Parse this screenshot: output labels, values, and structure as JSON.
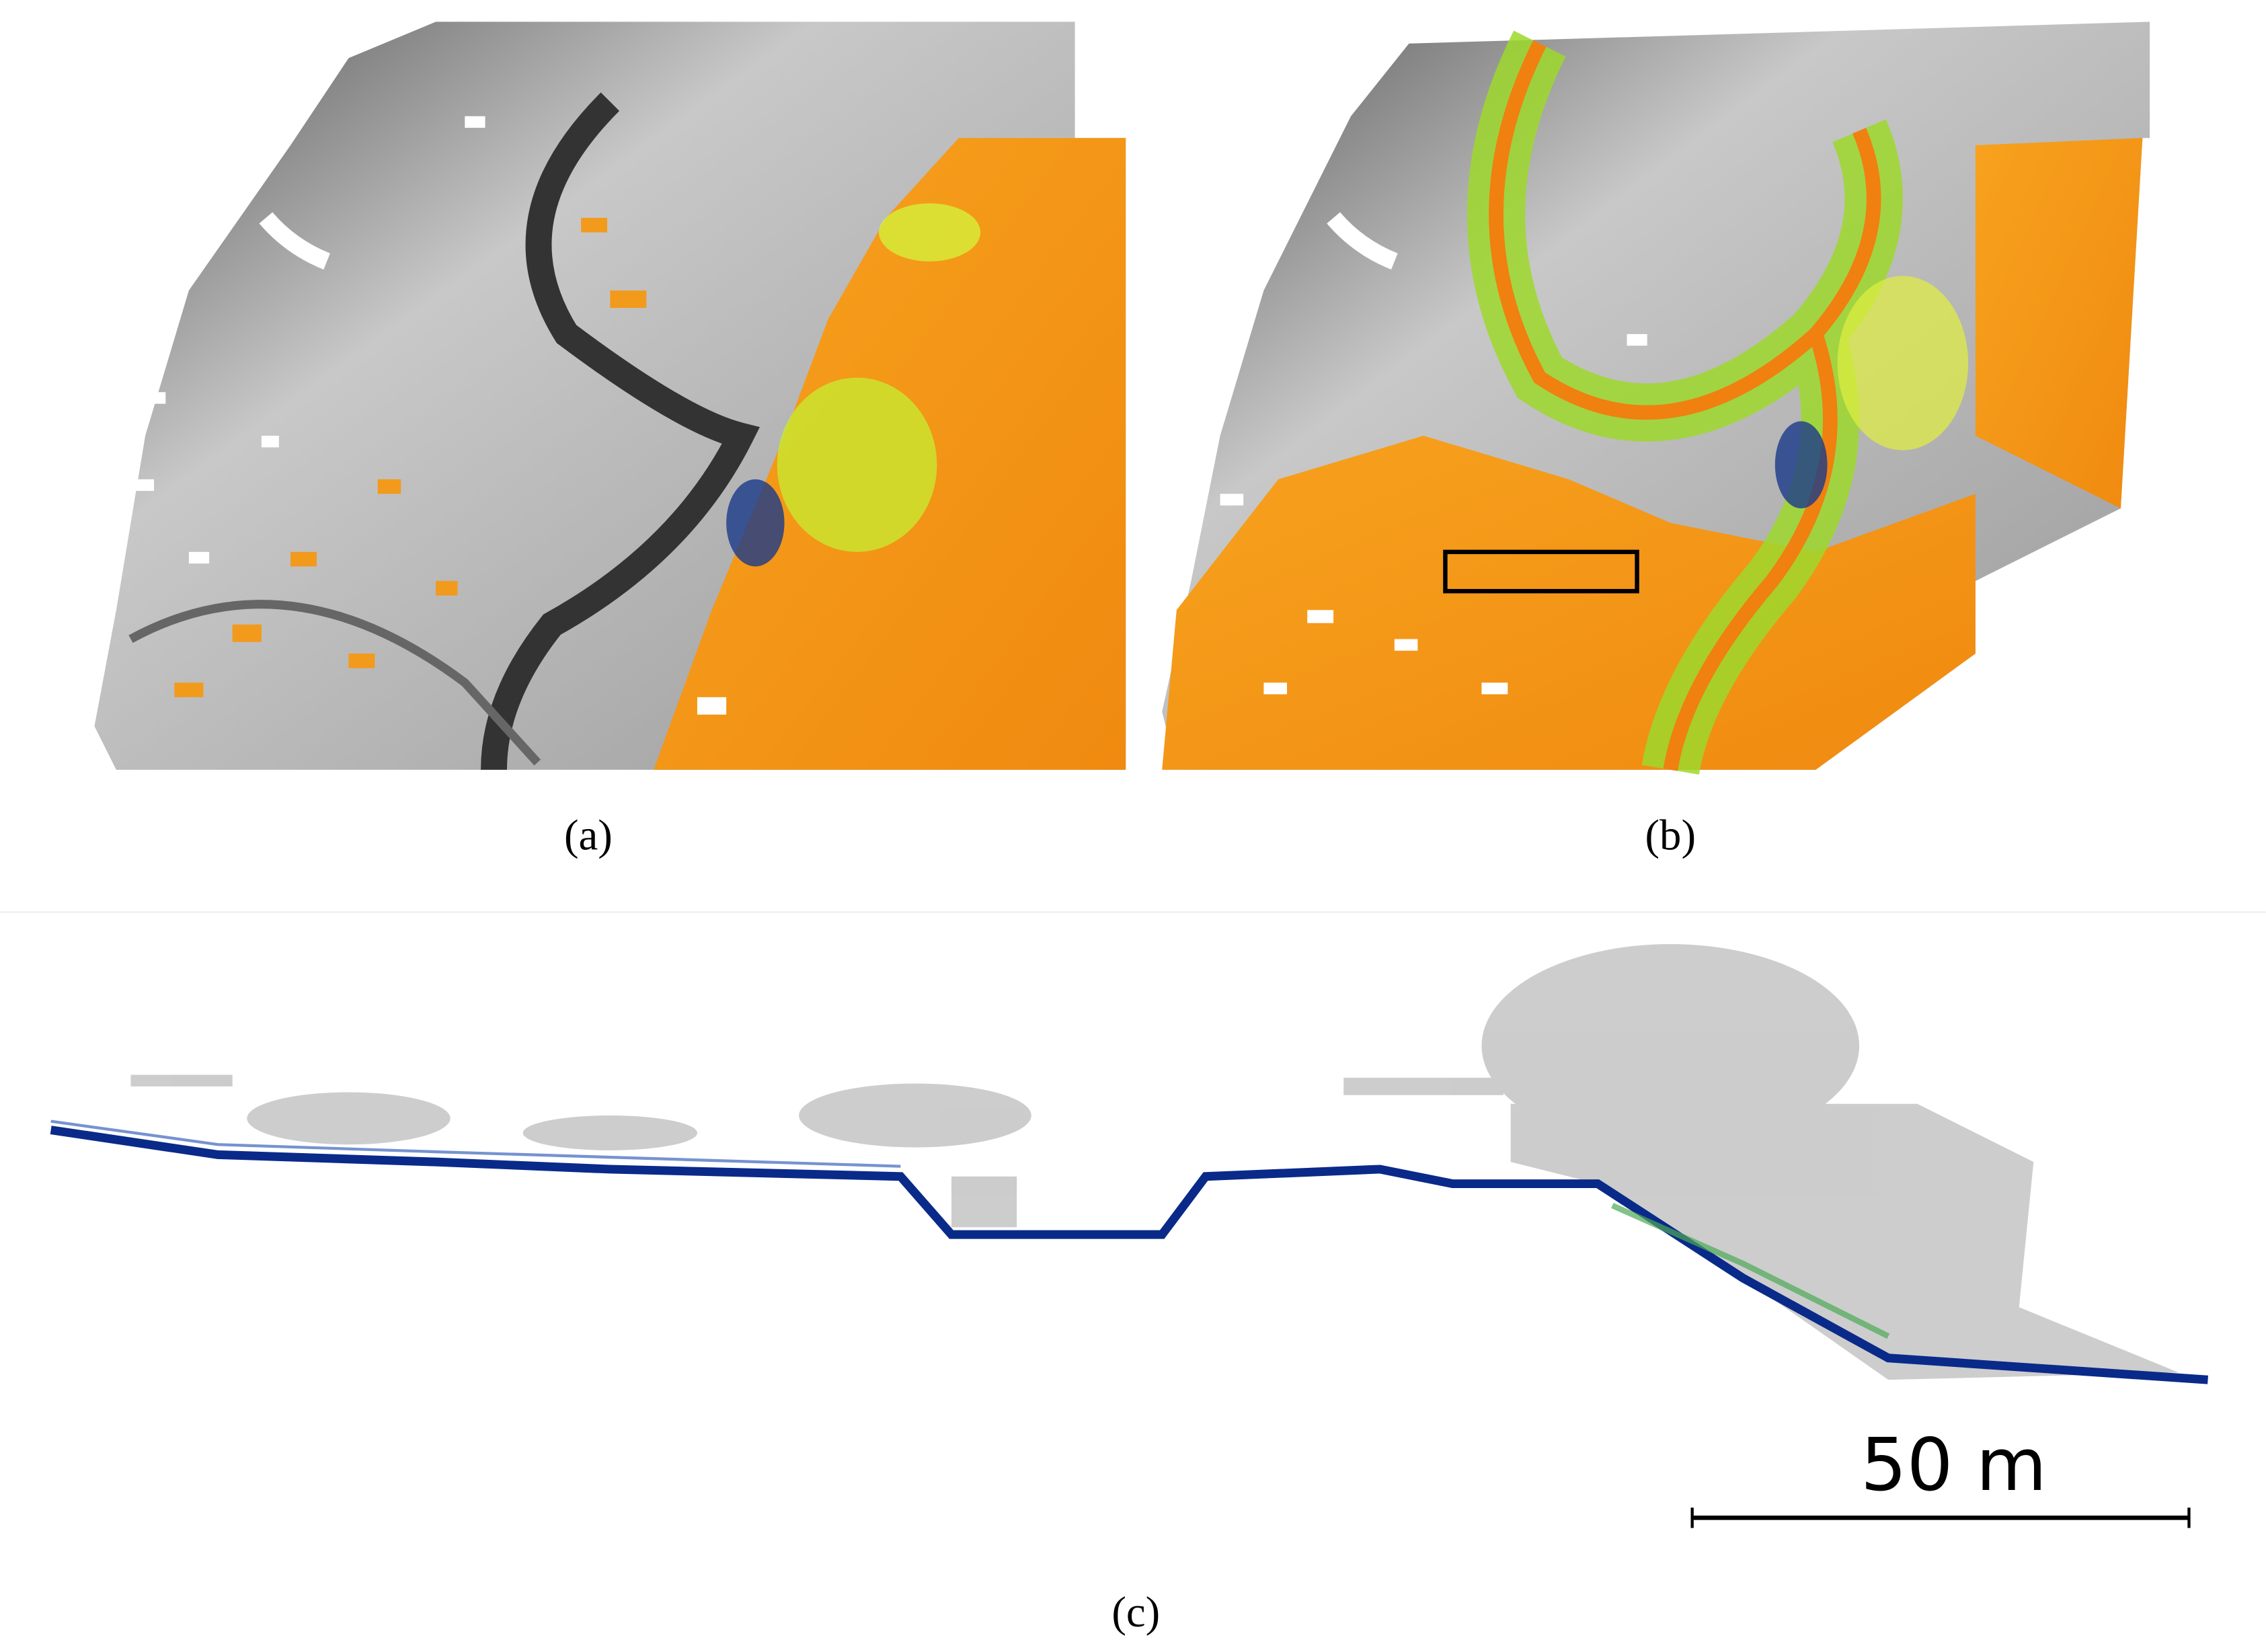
{
  "panels": [
    {
      "label": "(a)"
    },
    {
      "label": "(b)"
    },
    {
      "label": "(c)"
    }
  ],
  "scale_bar": {
    "label": "50 m"
  }
}
